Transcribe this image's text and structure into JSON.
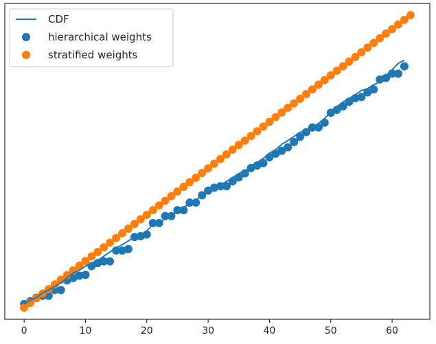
{
  "chart_data": {
    "type": "scatter",
    "title": "",
    "xlabel": "",
    "ylabel": "",
    "xlim": [
      -3.15,
      66.15
    ],
    "ylim": [
      -0.04,
      1.04
    ],
    "x_ticks": [
      0,
      10,
      20,
      30,
      40,
      50,
      60
    ],
    "x_tick_labels": [
      "0",
      "10",
      "20",
      "30",
      "40",
      "50",
      "60"
    ],
    "y_ticks_visible": false,
    "grid": false,
    "legend": {
      "placement": "top-left",
      "entries": [
        {
          "label": "CDF",
          "marker": "line",
          "color": "#1f77b4"
        },
        {
          "label": "hierarchical weights",
          "marker": "dot",
          "color": "#1f77b4"
        },
        {
          "label": "stratified weights",
          "marker": "dot",
          "color": "#ff7f0e"
        }
      ]
    },
    "series": [
      {
        "name": "CDF",
        "kind": "line",
        "color": "#1f77b4",
        "x": [
          0,
          1,
          2,
          3,
          4,
          5,
          6,
          7,
          8,
          9,
          10,
          11,
          12,
          13,
          14,
          15,
          16,
          17,
          18,
          19,
          20,
          21,
          22,
          23,
          24,
          25,
          26,
          27,
          28,
          29,
          30,
          31,
          32,
          33,
          34,
          35,
          36,
          37,
          38,
          39,
          40,
          41,
          42,
          43,
          44,
          45,
          46,
          47,
          48,
          49,
          50,
          51,
          52,
          53,
          54,
          55,
          56,
          57,
          58,
          59,
          60,
          61,
          62
        ],
        "y": [
          0.012,
          0.025,
          0.034,
          0.05,
          0.06,
          0.072,
          0.085,
          0.102,
          0.118,
          0.128,
          0.141,
          0.153,
          0.161,
          0.176,
          0.19,
          0.205,
          0.215,
          0.228,
          0.241,
          0.249,
          0.262,
          0.285,
          0.293,
          0.303,
          0.315,
          0.327,
          0.343,
          0.354,
          0.368,
          0.383,
          0.4,
          0.408,
          0.419,
          0.431,
          0.445,
          0.458,
          0.469,
          0.478,
          0.496,
          0.51,
          0.528,
          0.54,
          0.558,
          0.571,
          0.585,
          0.6,
          0.607,
          0.614,
          0.63,
          0.647,
          0.668,
          0.687,
          0.703,
          0.715,
          0.728,
          0.742,
          0.749,
          0.762,
          0.772,
          0.792,
          0.813,
          0.835,
          0.846
        ]
      },
      {
        "name": "hierarchical weights",
        "kind": "scatter",
        "color": "#1f77b4",
        "x": [
          0,
          1,
          2,
          3,
          4,
          5,
          6,
          7,
          8,
          9,
          10,
          11,
          12,
          13,
          14,
          15,
          16,
          17,
          18,
          19,
          20,
          21,
          22,
          23,
          24,
          25,
          26,
          27,
          28,
          29,
          30,
          31,
          32,
          33,
          34,
          35,
          36,
          37,
          38,
          39,
          40,
          41,
          42,
          43,
          44,
          45,
          46,
          47,
          48,
          49,
          50,
          51,
          52,
          53,
          54,
          55,
          56,
          57,
          58,
          59,
          60,
          61,
          62
        ],
        "y": [
          0.012,
          0.022,
          0.034,
          0.04,
          0.04,
          0.06,
          0.06,
          0.093,
          0.101,
          0.109,
          0.112,
          0.142,
          0.152,
          0.158,
          0.158,
          0.195,
          0.195,
          0.2,
          0.241,
          0.244,
          0.25,
          0.289,
          0.289,
          0.313,
          0.313,
          0.333,
          0.333,
          0.359,
          0.359,
          0.384,
          0.4,
          0.41,
          0.415,
          0.415,
          0.432,
          0.445,
          0.459,
          0.477,
          0.486,
          0.494,
          0.514,
          0.526,
          0.536,
          0.548,
          0.566,
          0.584,
          0.6,
          0.616,
          0.616,
          0.632,
          0.666,
          0.676,
          0.688,
          0.704,
          0.716,
          0.72,
          0.736,
          0.746,
          0.78,
          0.785,
          0.8,
          0.8,
          0.825
        ]
      },
      {
        "name": "stratified weights",
        "kind": "scatter",
        "color": "#ff7f0e",
        "x": [
          0,
          1,
          2,
          3,
          4,
          5,
          6,
          7,
          8,
          9,
          10,
          11,
          12,
          13,
          14,
          15,
          16,
          17,
          18,
          19,
          20,
          21,
          22,
          23,
          24,
          25,
          26,
          27,
          28,
          29,
          30,
          31,
          32,
          33,
          34,
          35,
          36,
          37,
          38,
          39,
          40,
          41,
          42,
          43,
          44,
          45,
          46,
          47,
          48,
          49,
          50,
          51,
          52,
          53,
          54,
          55,
          56,
          57,
          58,
          59,
          60,
          61,
          62,
          63
        ],
        "y": [
          0.0,
          0.016,
          0.032,
          0.048,
          0.063,
          0.079,
          0.095,
          0.111,
          0.127,
          0.143,
          0.159,
          0.175,
          0.19,
          0.206,
          0.222,
          0.238,
          0.254,
          0.27,
          0.286,
          0.302,
          0.317,
          0.333,
          0.349,
          0.365,
          0.381,
          0.397,
          0.413,
          0.429,
          0.444,
          0.46,
          0.476,
          0.492,
          0.508,
          0.524,
          0.54,
          0.556,
          0.571,
          0.587,
          0.603,
          0.619,
          0.635,
          0.651,
          0.667,
          0.683,
          0.698,
          0.714,
          0.73,
          0.746,
          0.762,
          0.778,
          0.794,
          0.81,
          0.825,
          0.841,
          0.857,
          0.873,
          0.889,
          0.905,
          0.921,
          0.937,
          0.952,
          0.968,
          0.984,
          1.0
        ]
      }
    ]
  }
}
